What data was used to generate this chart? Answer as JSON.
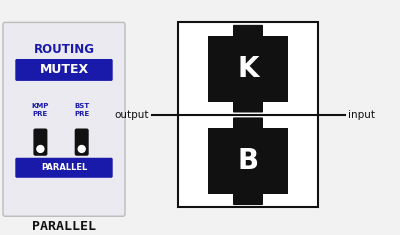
{
  "bg_color": "#f2f2f2",
  "panel_bg": "#eaeaf0",
  "panel_border": "#bbbbbb",
  "routing_color": "#1a1aaa",
  "mutex_bg": "#1a1aaa",
  "mutex_text_color": "#ffffff",
  "parallel_badge_bg": "#1a1aaa",
  "parallel_badge_color": "#ffffff",
  "bottom_text_color": "#111111",
  "block_color": "#111111",
  "line_color": "#111111",
  "label_color": "#111111",
  "white": "#ffffff",
  "routing_text": "ROUTING",
  "mutex_text": "MUTEX",
  "kmp_pre": "KMP\nPRE",
  "bst_pre": "BST\nPRE",
  "parallel_badge": "PARALLEL",
  "bottom_text": "PARALLEL",
  "block_K_label": "K",
  "block_B_label": "B",
  "output_label": "output",
  "input_label": "input"
}
